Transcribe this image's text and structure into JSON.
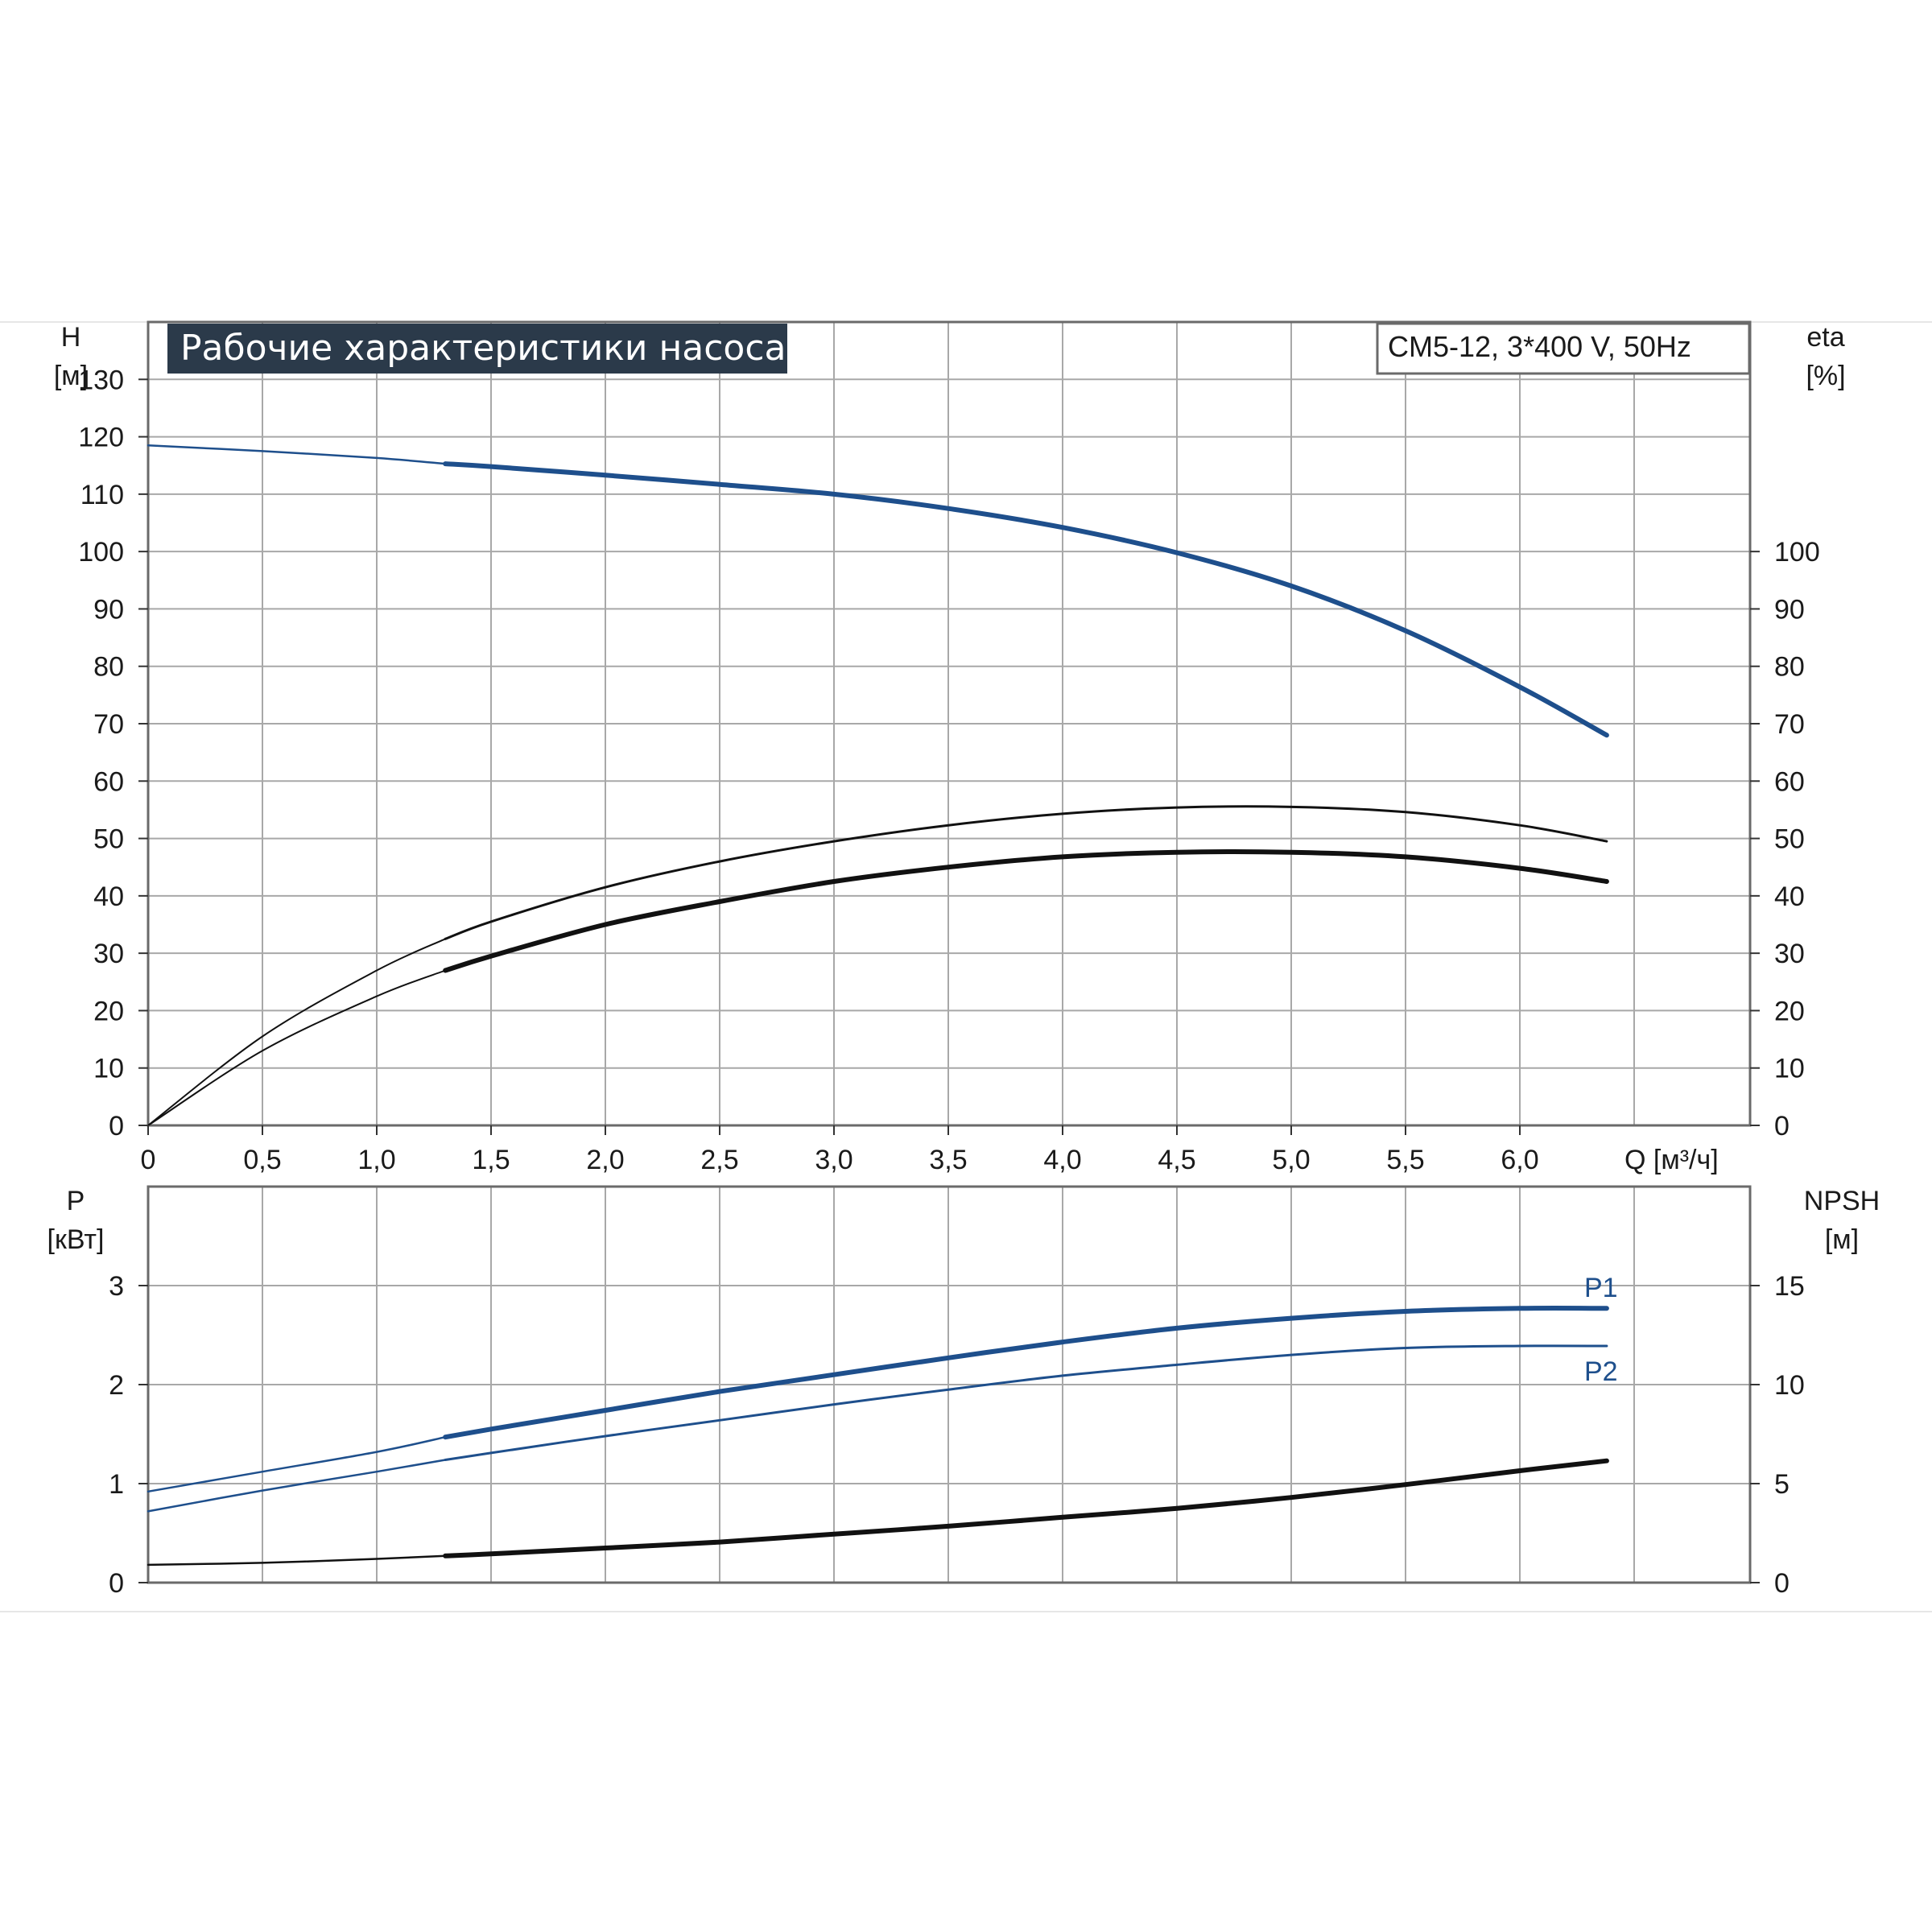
{
  "title": "Рабочие характеристики насоса",
  "model": "CM5-12, 3*400 V, 50Hz",
  "colors": {
    "blue": "#1e4f8c",
    "black": "#111111",
    "grid": "#a8a8a8",
    "title_bg": "#2b3a4a"
  },
  "chart_data": [
    {
      "type": "line",
      "name": "top-panel",
      "xlabel": "Q [м³/ч]",
      "x_ticks": [
        "0",
        "0,5",
        "1,0",
        "1,5",
        "2,0",
        "2,5",
        "3,0",
        "3,5",
        "4,0",
        "4,5",
        "5,0",
        "5,5",
        "6,0"
      ],
      "xlim": [
        0,
        7
      ],
      "y_left": {
        "label": "H",
        "unit": "[м]",
        "ticks": [
          "0",
          "10",
          "20",
          "30",
          "40",
          "50",
          "60",
          "70",
          "80",
          "90",
          "100",
          "110",
          "120",
          "130"
        ],
        "ylim": [
          0,
          140
        ]
      },
      "y_right": {
        "label": "eta",
        "unit": "[%]",
        "ticks": [
          "0",
          "10",
          "20",
          "30",
          "40",
          "50",
          "60",
          "70",
          "80",
          "90",
          "100"
        ],
        "ylim": [
          0,
          140
        ]
      },
      "grid": true,
      "series": [
        {
          "color": "#1e4f8c",
          "axis": "left",
          "x": [
            0,
            0.5,
            1.0,
            1.3,
            1.5,
            2.0,
            2.5,
            3.0,
            3.5,
            4.0,
            4.5,
            5.0,
            5.5,
            6.0,
            6.38
          ],
          "y": [
            118.5,
            117.5,
            116.3,
            115.3,
            114.8,
            113.3,
            111.7,
            110.0,
            107.5,
            104.2,
            99.8,
            94.0,
            86.2,
            76.4,
            68.0
          ]
        },
        {
          "color": "#111111",
          "axis": "right",
          "x": [
            0,
            0.5,
            1.0,
            1.3,
            1.5,
            2.0,
            2.5,
            3.0,
            3.5,
            4.0,
            4.5,
            5.0,
            5.5,
            6.0,
            6.38
          ],
          "y": [
            0,
            15.5,
            27.0,
            32.5,
            35.5,
            41.5,
            46.0,
            49.5,
            52.3,
            54.3,
            55.4,
            55.5,
            54.6,
            52.3,
            49.5
          ]
        },
        {
          "color": "#111111",
          "axis": "right",
          "x": [
            0,
            0.5,
            1.0,
            1.3,
            1.5,
            2.0,
            2.5,
            3.0,
            3.5,
            4.0,
            4.5,
            5.0,
            5.5,
            6.0,
            6.38
          ],
          "y": [
            0,
            13.0,
            22.5,
            27.0,
            29.5,
            35.0,
            39.0,
            42.5,
            45.0,
            46.8,
            47.6,
            47.6,
            46.8,
            44.8,
            42.5
          ]
        }
      ]
    },
    {
      "type": "line",
      "name": "bottom-panel",
      "xlim": [
        0,
        7
      ],
      "y_left": {
        "label": "P",
        "unit": "[кВт]",
        "ticks": [
          "0",
          "1",
          "2",
          "3"
        ],
        "ylim": [
          0,
          4
        ]
      },
      "y_right": {
        "label": "NPSH",
        "unit": "[м]",
        "ticks": [
          "0",
          "5",
          "10",
          "15"
        ],
        "ylim": [
          0,
          20
        ]
      },
      "grid": true,
      "series": [
        {
          "name": "P1",
          "color": "#1e4f8c",
          "axis": "left",
          "x": [
            0,
            0.5,
            1.0,
            1.3,
            1.5,
            2.0,
            2.5,
            3.0,
            3.5,
            4.0,
            4.5,
            5.0,
            5.5,
            6.0,
            6.38
          ],
          "y": [
            0.92,
            1.12,
            1.32,
            1.47,
            1.55,
            1.74,
            1.93,
            2.1,
            2.27,
            2.43,
            2.57,
            2.67,
            2.74,
            2.77,
            2.77
          ]
        },
        {
          "name": "P2",
          "color": "#1e4f8c",
          "axis": "left",
          "x": [
            0,
            0.5,
            1.0,
            1.3,
            1.5,
            2.0,
            2.5,
            3.0,
            3.5,
            4.0,
            4.5,
            5.0,
            5.5,
            6.0,
            6.38
          ],
          "y": [
            0.72,
            0.93,
            1.12,
            1.24,
            1.31,
            1.48,
            1.64,
            1.8,
            1.95,
            2.09,
            2.2,
            2.3,
            2.37,
            2.39,
            2.39
          ]
        },
        {
          "color": "#111111",
          "axis": "right",
          "x": [
            0,
            0.5,
            1.0,
            1.3,
            1.5,
            2.0,
            2.5,
            3.0,
            3.5,
            4.0,
            4.5,
            5.0,
            5.5,
            6.0,
            6.38
          ],
          "y": [
            0.9,
            1.0,
            1.2,
            1.35,
            1.45,
            1.75,
            2.05,
            2.45,
            2.85,
            3.3,
            3.75,
            4.3,
            4.95,
            5.65,
            6.15
          ]
        }
      ]
    }
  ]
}
